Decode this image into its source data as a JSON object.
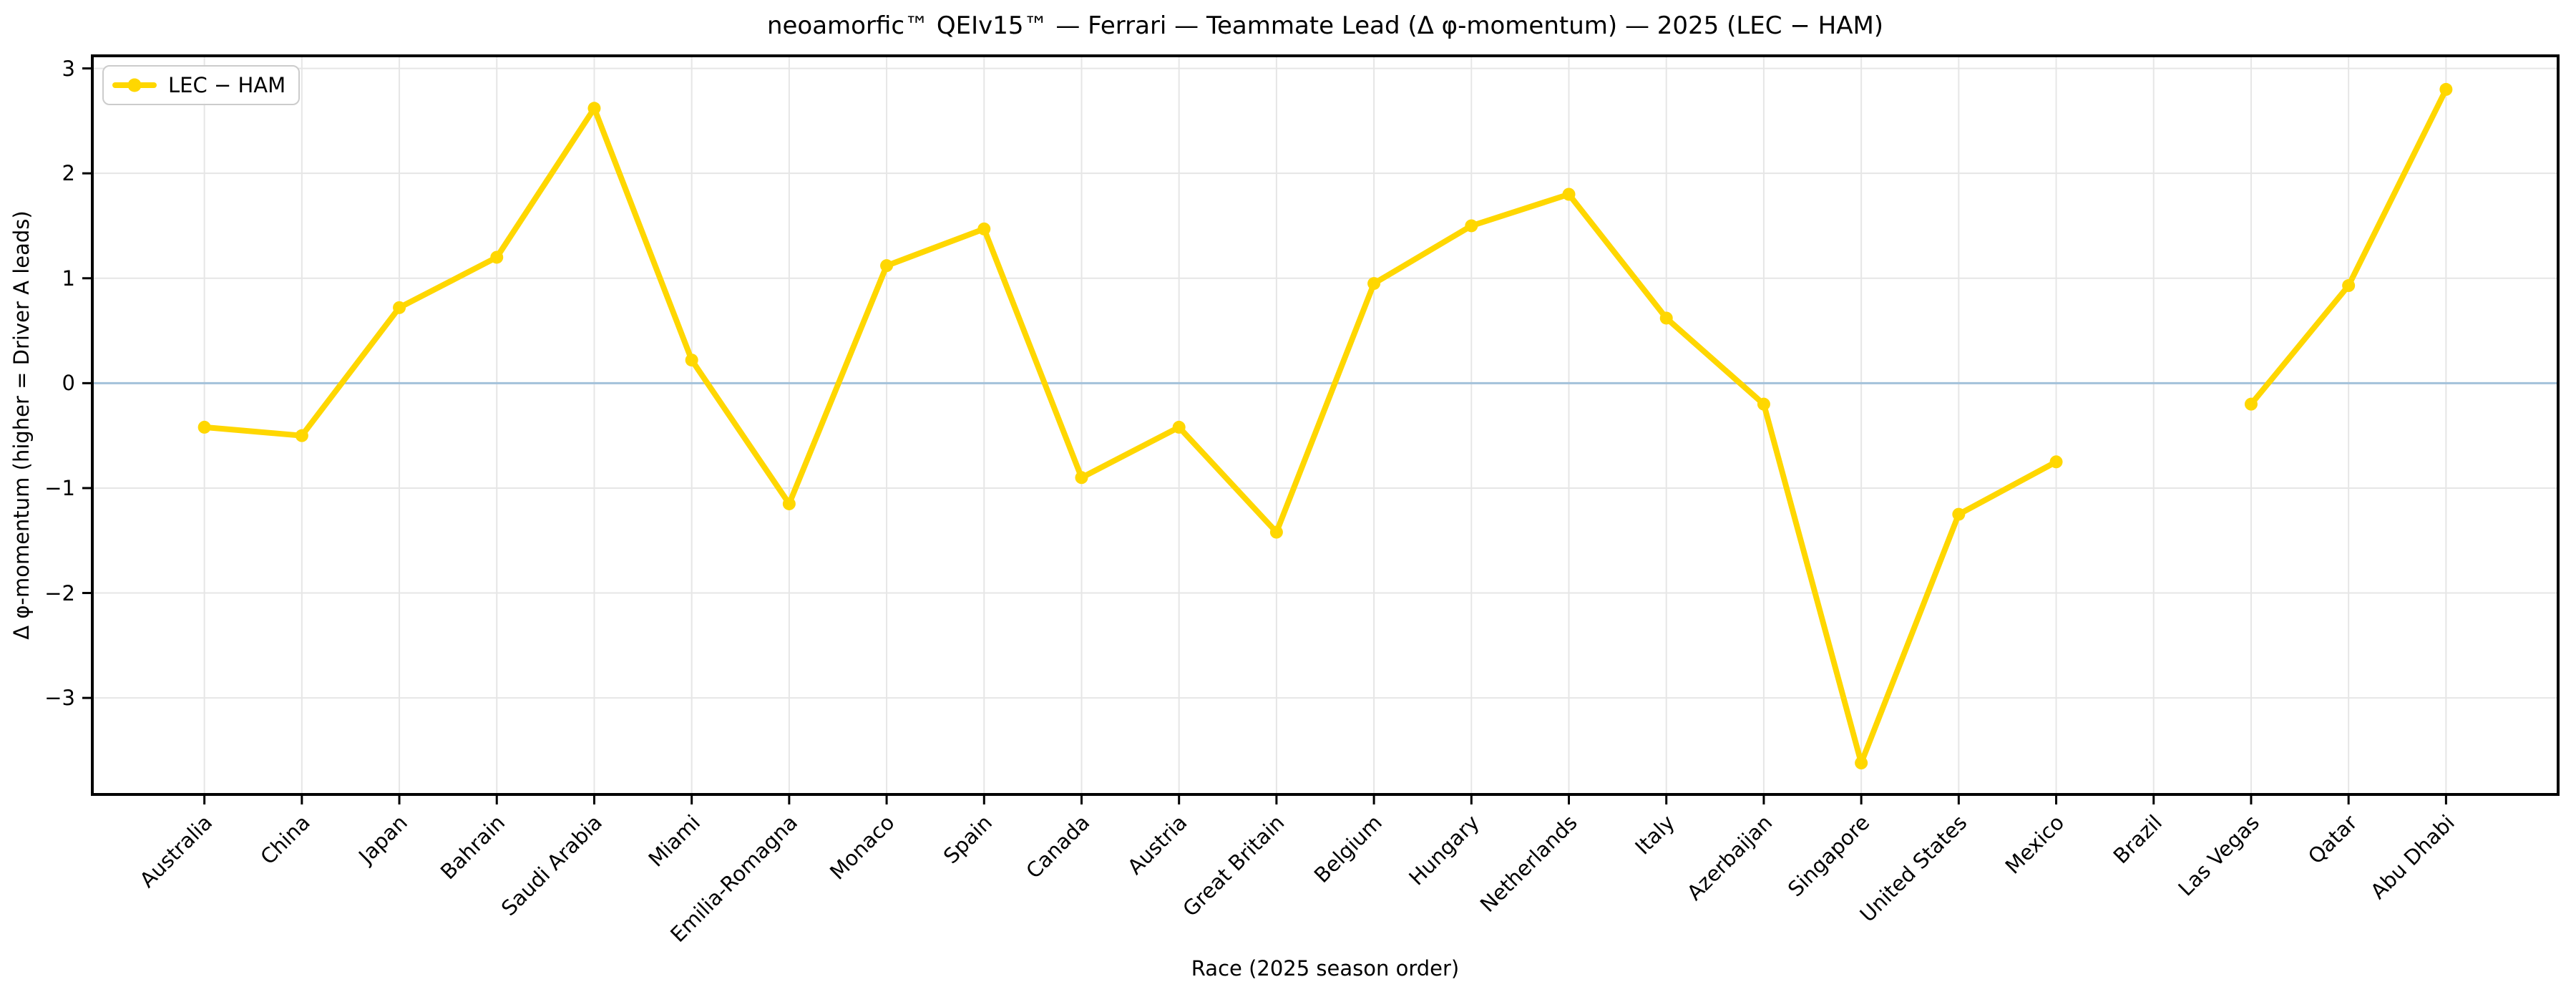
{
  "title": "neoamorfic™  QEIv15™ — Ferrari — Teammate Lead (Δ φ-momentum) — 2025 (LEC − HAM)",
  "axes": {
    "xlabel": "Race (2025 season order)",
    "ylabel": "Δ φ-momentum (higher = Driver A leads)"
  },
  "legend": {
    "label": "LEC − HAM",
    "position": "upper left"
  },
  "colors": {
    "series": "#FFD700",
    "zero_line": "#a3c1da",
    "grid": "#e6e6e6",
    "spine": "#000000",
    "text": "#000000",
    "legend_border": "#cccccc"
  },
  "chart_data": {
    "type": "line",
    "title": "neoamorfic™  QEIv15™ — Ferrari — Teammate Lead (Δ φ-momentum) — 2025 (LEC − HAM)",
    "xlabel": "Race (2025 season order)",
    "ylabel": "Δ φ-momentum (higher = Driver A leads)",
    "legend_entries": [
      "LEC − HAM"
    ],
    "legend_position": "upper left",
    "grid": true,
    "zero_line": 0,
    "categories": [
      "Australia",
      "China",
      "Japan",
      "Bahrain",
      "Saudi Arabia",
      "Miami",
      "Emilia-Romagna",
      "Monaco",
      "Spain",
      "Canada",
      "Austria",
      "Great Britain",
      "Belgium",
      "Hungary",
      "Netherlands",
      "Italy",
      "Azerbaijan",
      "Singapore",
      "United States",
      "Mexico",
      "Brazil",
      "Las Vegas",
      "Qatar",
      "Abu Dhabi"
    ],
    "series": [
      {
        "name": "LEC − HAM",
        "values": [
          -0.42,
          -0.5,
          0.72,
          1.2,
          2.62,
          0.22,
          -1.15,
          1.12,
          1.47,
          -0.9,
          -0.42,
          -1.42,
          0.95,
          1.5,
          1.8,
          0.62,
          -0.2,
          -3.62,
          -1.25,
          -0.75,
          null,
          -0.2,
          0.93,
          2.8
        ]
      }
    ],
    "yticks": [
      3,
      2,
      1,
      0,
      -1,
      -2,
      -3
    ],
    "ytick_labels": [
      "3",
      "2",
      "1",
      "0",
      "−1",
      "−2",
      "−3"
    ],
    "ylim": [
      -3.92,
      3.12
    ]
  }
}
